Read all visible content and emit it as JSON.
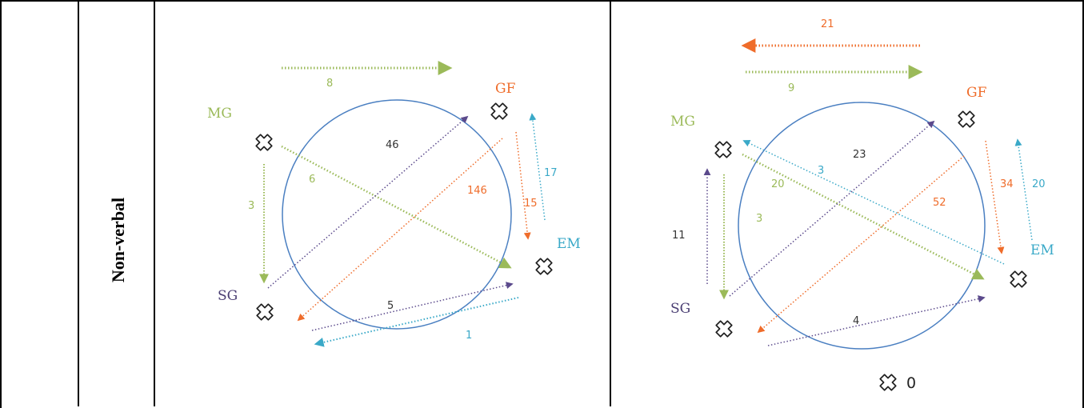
{
  "row_label": "Non-verbal",
  "colors": {
    "green": "#9bba59",
    "orange": "#ef6c2a",
    "teal": "#3aa9c8",
    "purple": "#5b4a8c",
    "circle": "#4a7fc1",
    "number_dark": "#333333",
    "node_label_sg": "#4a3e73"
  },
  "diagrams": [
    {
      "node_labels": {
        "mg": "MG",
        "gf": "GF",
        "em": "EM",
        "sg": "SG"
      },
      "numbers": {
        "n8": "8",
        "n46": "46",
        "n6": "6",
        "n146": "146",
        "n15": "15",
        "n17": "17",
        "n3": "3",
        "n5": "5",
        "n1": "1"
      }
    },
    {
      "node_labels": {
        "mg": "MG",
        "gf": "GF",
        "em": "EM",
        "sg": "SG"
      },
      "numbers": {
        "n21": "21",
        "n9": "9",
        "n23": "23",
        "n3a": "3",
        "n20a": "20",
        "n52": "52",
        "n34": "34",
        "n20b": "20",
        "n3b": "3",
        "n11": "11",
        "n4": "4"
      },
      "extra_node_value": "0"
    }
  ]
}
